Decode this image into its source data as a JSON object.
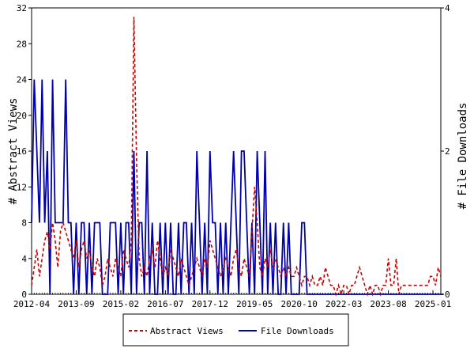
{
  "chart_data": {
    "type": "line",
    "title": "",
    "xlabel": "",
    "ylabel_left": "# Abstract Views",
    "ylabel_right": "# File Downloads",
    "y_left_range": [
      0,
      32
    ],
    "y_left_ticks": [
      "0",
      "4",
      "8",
      "12",
      "16",
      "20",
      "24",
      "28",
      "32"
    ],
    "y_right_range": [
      0,
      4
    ],
    "y_right_ticks": [
      "0",
      "2",
      "4"
    ],
    "x_ticks": [
      "2012-04",
      "2013-09",
      "2015-02",
      "2016-07",
      "2017-12",
      "2019-05",
      "2020-10",
      "2022-03",
      "2023-08",
      "2025-01"
    ],
    "start_month": "2012-04",
    "legend_position": "bottom-center",
    "grid": false,
    "series": [
      {
        "name": "Abstract Views",
        "axis": "left",
        "color": "#cc0000",
        "style": "dashed",
        "values": [
          1,
          3,
          5,
          2,
          4,
          6,
          7,
          5,
          8,
          6,
          3,
          7,
          8,
          7,
          6,
          5,
          4,
          6,
          3,
          5,
          6,
          4,
          5,
          3,
          2,
          4,
          3,
          1,
          2,
          4,
          3,
          2,
          4,
          3,
          2,
          5,
          4,
          3,
          6,
          31,
          15,
          4,
          2,
          3,
          2,
          4,
          5,
          3,
          6,
          4,
          2,
          3,
          2,
          5,
          4,
          3,
          2,
          4,
          3,
          2,
          1,
          2,
          3,
          4,
          3,
          2,
          4,
          3,
          6,
          5,
          4,
          3,
          2,
          3,
          4,
          3,
          2,
          4,
          5,
          3,
          2,
          4,
          3,
          2,
          7,
          12,
          8,
          3,
          2,
          4,
          3,
          5,
          3,
          4,
          3,
          2,
          3,
          2,
          3,
          2,
          2,
          3,
          2,
          1,
          2,
          2,
          1,
          2,
          1,
          1,
          2,
          1,
          3,
          2,
          1,
          1,
          0,
          1,
          0,
          1,
          1,
          0,
          1,
          1,
          2,
          3,
          2,
          1,
          0,
          1,
          0,
          1,
          1,
          0,
          1,
          1,
          4,
          1,
          1,
          4,
          0,
          1,
          1,
          1,
          1,
          1,
          1,
          1,
          1,
          1,
          1,
          1,
          2,
          2,
          1,
          3,
          2
        ]
      },
      {
        "name": "File Downloads",
        "axis": "right",
        "color": "#0000aa",
        "style": "solid",
        "values": [
          1,
          3,
          2,
          1,
          3,
          1,
          2,
          0,
          3,
          1,
          1,
          1,
          1,
          3,
          1,
          1,
          0,
          1,
          0,
          1,
          1,
          0,
          1,
          0,
          1,
          1,
          1,
          0,
          0,
          0,
          1,
          1,
          1,
          0,
          1,
          0,
          1,
          1,
          0,
          2,
          0,
          1,
          1,
          0,
          2,
          0,
          1,
          0,
          0,
          1,
          0,
          1,
          0,
          1,
          0,
          0,
          1,
          0,
          1,
          1,
          0,
          1,
          0,
          2,
          1,
          0,
          1,
          0,
          2,
          1,
          1,
          0,
          1,
          0,
          1,
          0,
          1,
          2,
          1,
          0,
          2,
          2,
          1,
          0,
          1,
          0,
          2,
          1,
          0,
          2,
          0,
          1,
          0,
          1,
          0,
          0,
          1,
          0,
          1,
          0,
          0,
          0,
          0,
          1,
          1,
          0,
          0,
          0,
          0,
          0,
          0,
          0,
          0,
          0,
          0,
          0,
          0,
          0,
          0,
          0,
          0,
          0,
          0,
          0,
          0,
          0,
          0,
          0,
          0,
          0,
          0,
          0,
          0,
          0,
          0,
          0,
          0,
          0,
          0,
          0,
          0,
          0,
          0,
          0,
          0,
          0,
          0,
          0,
          0,
          0,
          0,
          0,
          0,
          0,
          0,
          0,
          0,
          0
        ]
      }
    ]
  }
}
